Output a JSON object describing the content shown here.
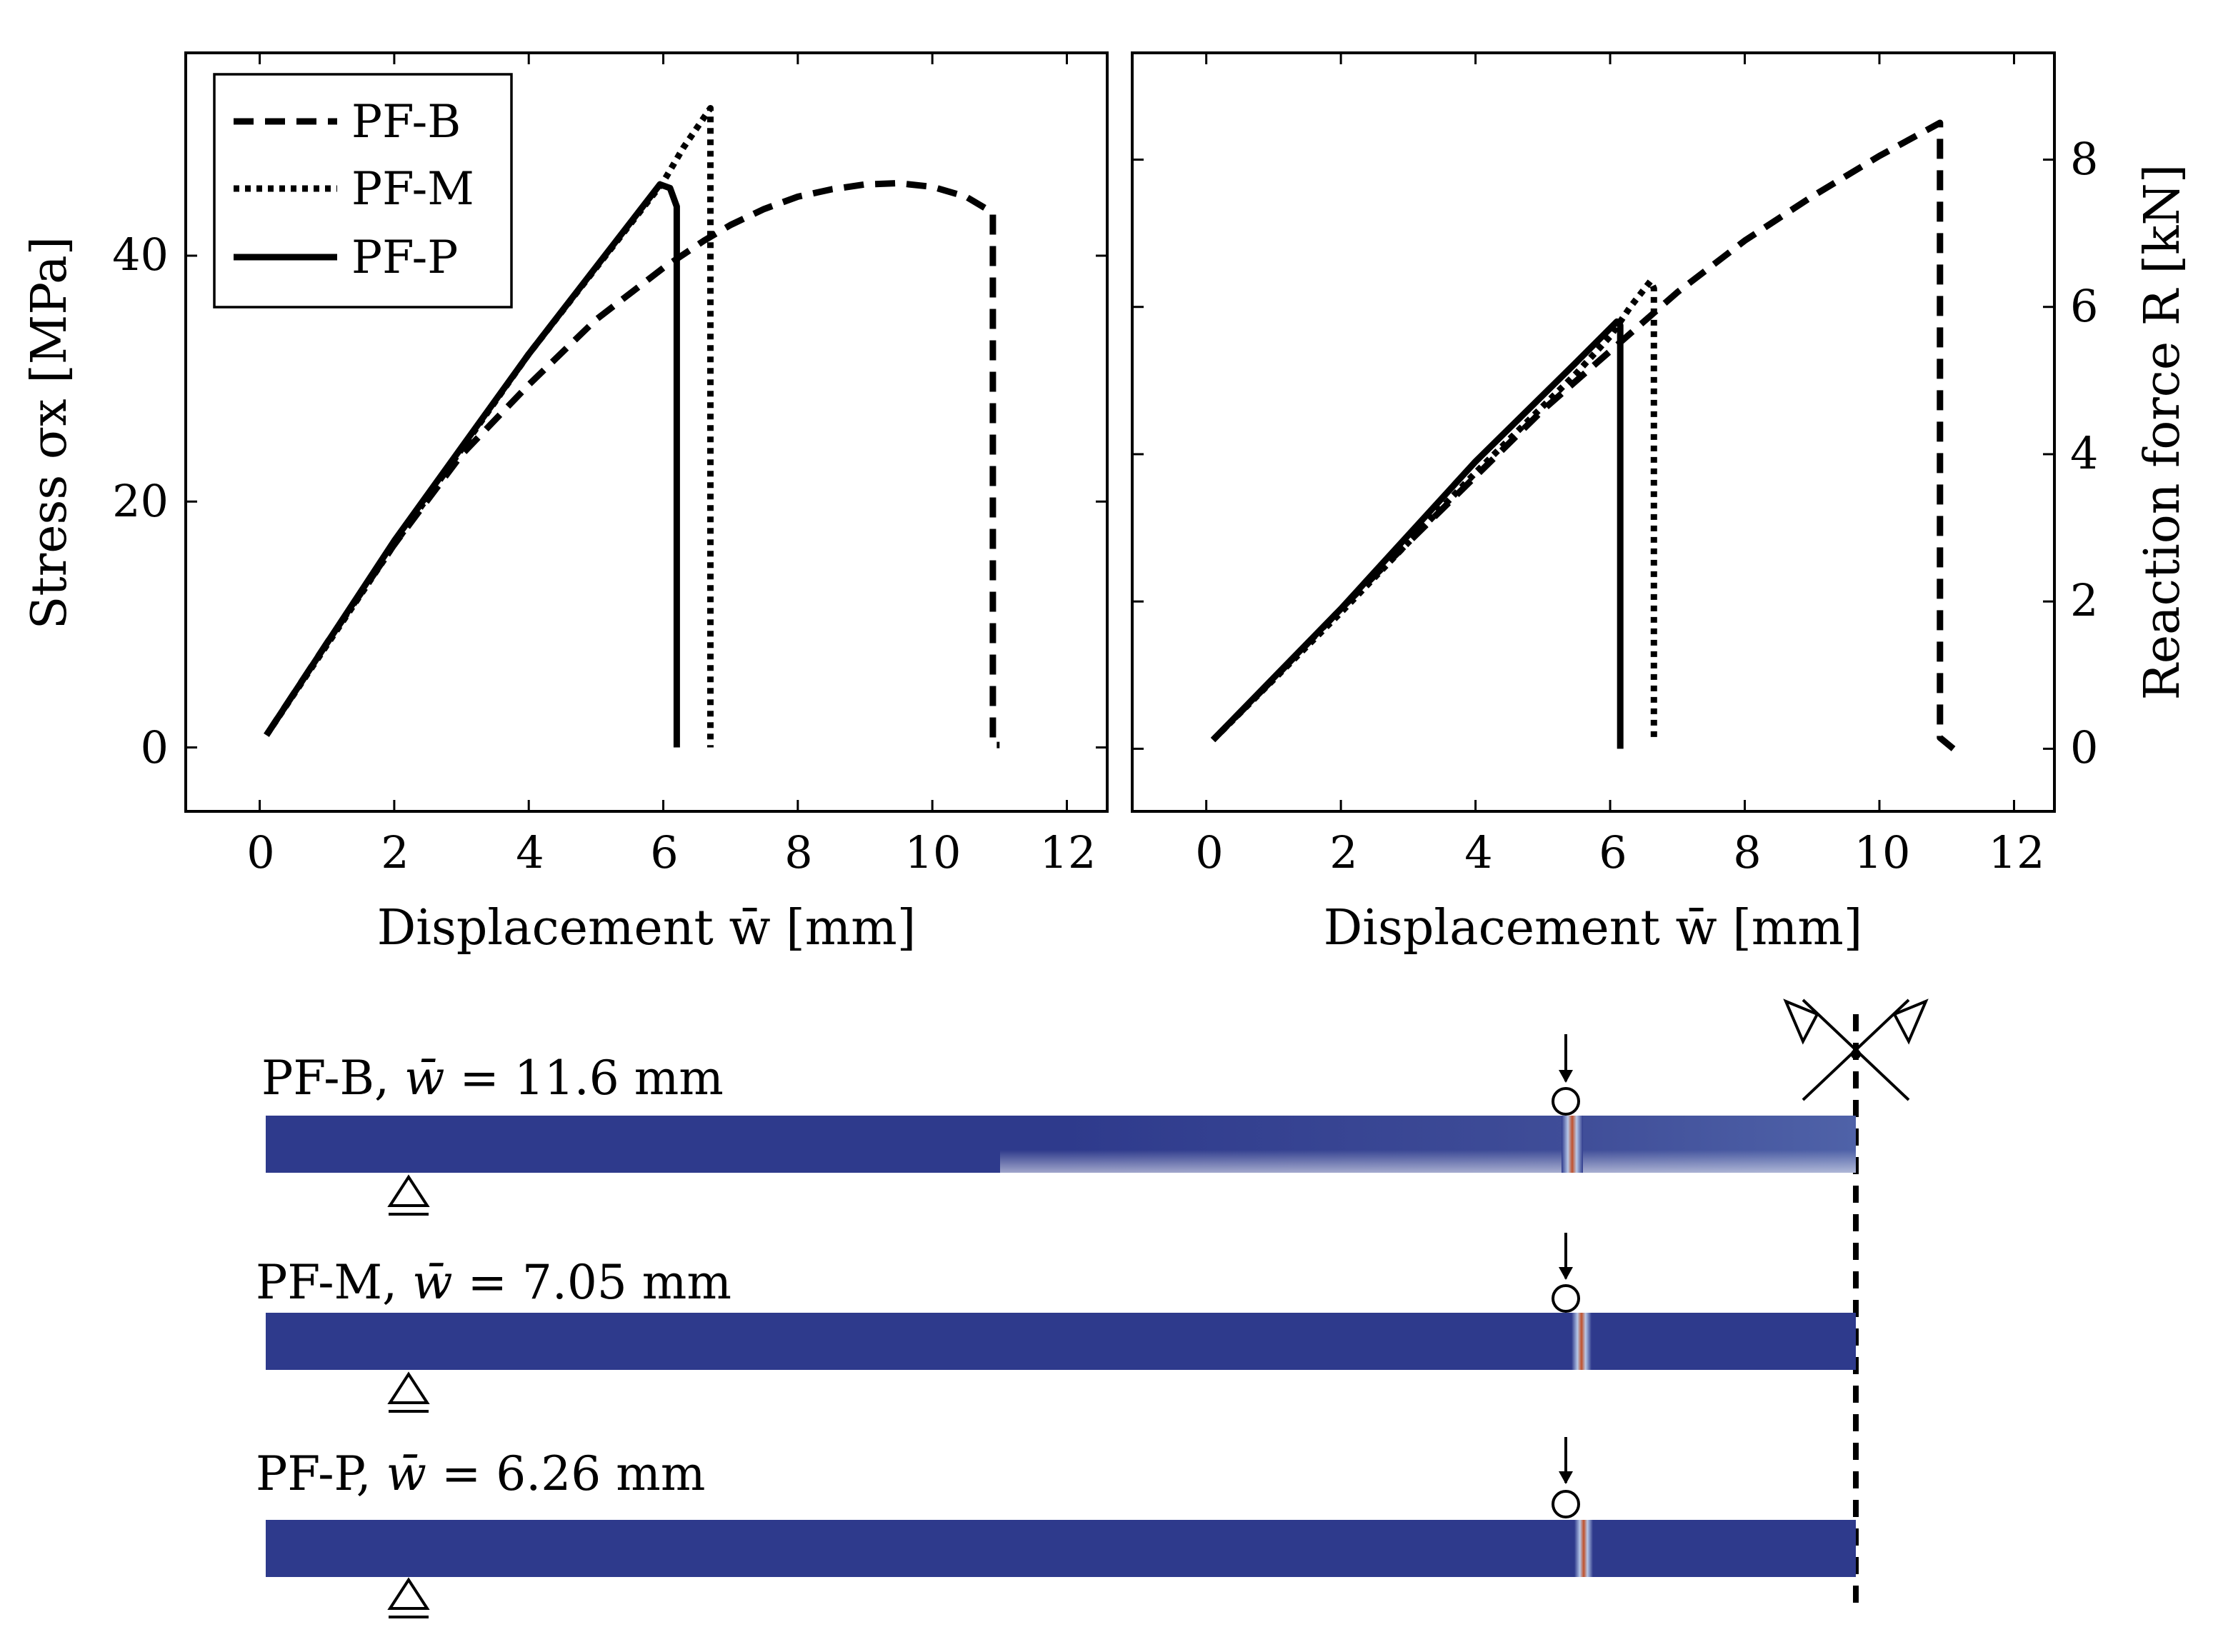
{
  "chart_data": [
    {
      "type": "line",
      "panel": "left",
      "title": "",
      "xlabel": "Displacement w̄ [mm]",
      "ylabel": "Stress σx [MPa]",
      "xlim": [
        -1.1,
        12.6
      ],
      "ylim": [
        -5.2,
        56.5
      ],
      "xticks": [
        0,
        2,
        4,
        6,
        8,
        10,
        12
      ],
      "yticks": [
        0,
        20,
        40
      ],
      "legend": "top-left",
      "series": [
        {
          "name": "PF-B",
          "style": "dashed",
          "x": [
            0.1,
            1.0,
            2.0,
            3.0,
            4.0,
            5.0,
            6.0,
            6.6,
            7.0,
            7.5,
            8.0,
            8.5,
            9.0,
            9.5,
            10.0,
            10.5,
            10.9,
            10.9,
            11.0
          ],
          "y": [
            1.0,
            8.5,
            16.5,
            23.8,
            29.5,
            34.8,
            39.0,
            41.2,
            42.5,
            43.8,
            44.8,
            45.4,
            45.8,
            45.9,
            45.6,
            44.8,
            43.5,
            0.2,
            0.2
          ]
        },
        {
          "name": "PF-M",
          "style": "dotted",
          "x": [
            0.1,
            2.0,
            4.0,
            6.0,
            6.3,
            6.7,
            6.7
          ],
          "y": [
            1.0,
            16.5,
            32.0,
            46.0,
            48.8,
            52.0,
            0.0
          ]
        },
        {
          "name": "PF-P",
          "style": "solid",
          "x": [
            0.1,
            2.0,
            4.0,
            5.95,
            6.1,
            6.2,
            6.2
          ],
          "y": [
            1.0,
            16.8,
            32.0,
            45.8,
            45.5,
            44.0,
            0.0
          ]
        }
      ]
    },
    {
      "type": "line",
      "panel": "right",
      "title": "",
      "xlabel": "Displacement w̄ [mm]",
      "ylabel": "Reaction force R [kN]",
      "ylabel_side": "right",
      "xlim": [
        -1.1,
        12.6
      ],
      "ylim": [
        -0.85,
        9.45
      ],
      "xticks": [
        0,
        2,
        4,
        6,
        8,
        10,
        12
      ],
      "yticks": [
        0,
        2,
        4,
        6,
        8
      ],
      "series": [
        {
          "name": "PF-B",
          "style": "dashed",
          "x": [
            0.1,
            1.0,
            2.0,
            3.0,
            4.0,
            5.0,
            6.0,
            7.0,
            8.0,
            9.0,
            10.0,
            10.5,
            10.9,
            10.9,
            11.1
          ],
          "y": [
            0.12,
            0.95,
            1.9,
            2.8,
            3.7,
            4.6,
            5.4,
            6.2,
            6.9,
            7.5,
            8.05,
            8.3,
            8.5,
            0.15,
            0.0
          ]
        },
        {
          "name": "PF-M",
          "style": "dotted",
          "x": [
            0.1,
            2.0,
            4.0,
            5.5,
            6.0,
            6.3,
            6.6,
            6.65,
            6.65
          ],
          "y": [
            0.12,
            1.85,
            3.75,
            5.1,
            5.6,
            6.0,
            6.35,
            6.25,
            0.15
          ]
        },
        {
          "name": "PF-P",
          "style": "solid",
          "x": [
            0.1,
            2.0,
            4.0,
            5.5,
            6.1,
            6.15,
            6.15
          ],
          "y": [
            0.12,
            1.9,
            3.9,
            5.25,
            5.8,
            5.75,
            0.0
          ]
        }
      ]
    }
  ],
  "legend": {
    "entries": [
      {
        "name": "PF-B",
        "style": "dashed"
      },
      {
        "name": "PF-M",
        "style": "dotted"
      },
      {
        "name": "PF-P",
        "style": "solid"
      }
    ]
  },
  "beams": [
    {
      "prefix": "PF-B,",
      "value": "= 11.6 mm"
    },
    {
      "prefix": "PF-M,",
      "value": "= 7.05 mm"
    },
    {
      "prefix": "PF-P,",
      "value": "= 6.26 mm"
    }
  ],
  "colors": {
    "beam": "#2e3a8c",
    "crack": "#c0502a",
    "ink": "#000000"
  }
}
